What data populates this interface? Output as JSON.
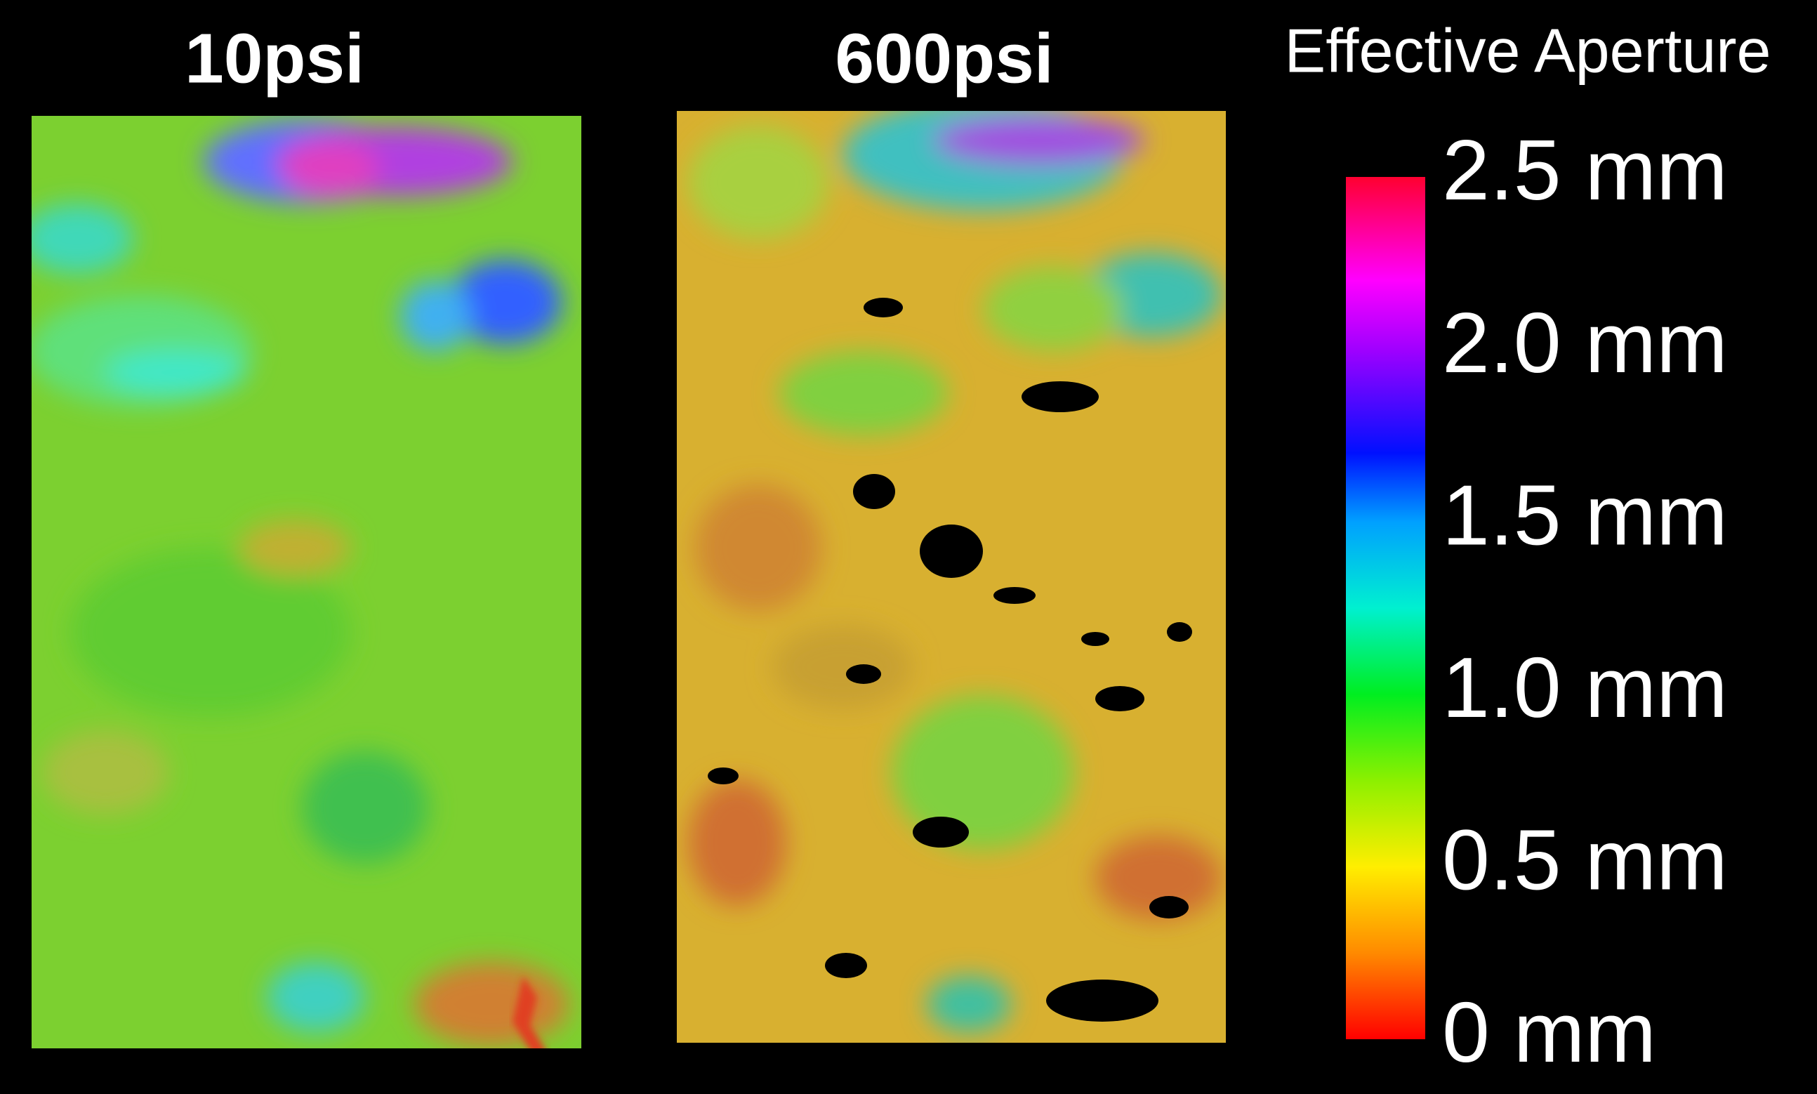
{
  "chart_data": {
    "type": "colormap-panels",
    "panels": [
      {
        "title": "10psi"
      },
      {
        "title": "600psi"
      }
    ],
    "colorbar": {
      "label": "Effective Aperture",
      "lim": [
        0,
        2.5
      ],
      "ticks": [
        {
          "value": 0,
          "label": "0 mm"
        },
        {
          "value": 0.5,
          "label": "0.5 mm"
        },
        {
          "value": 1.0,
          "label": "1.0 mm"
        },
        {
          "value": 1.5,
          "label": "1.5 mm"
        },
        {
          "value": 2.0,
          "label": "2.0 mm"
        },
        {
          "value": 2.5,
          "label": "2.5 mm"
        }
      ]
    }
  }
}
